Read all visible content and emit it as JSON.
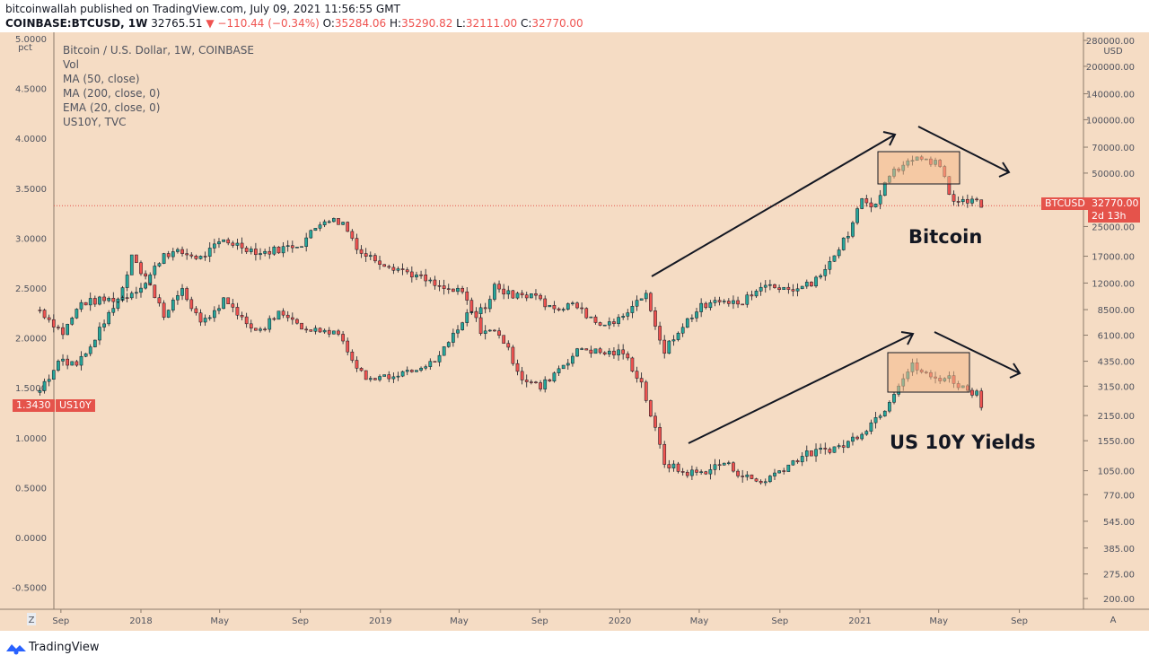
{
  "header": {
    "line1": "bitcoinwallah published on TradingView.com, July 09, 2021 11:56:55 GMT",
    "symbol": "COINBASE:BTCUSD, 1W",
    "price": "32765.51",
    "change": "−110.44 (−0.34%)",
    "o_label": "O:",
    "o_val": "35284.06",
    "h_label": "H:",
    "h_val": "35290.82",
    "l_label": "L:",
    "l_val": "32111.00",
    "c_label": "C:",
    "c_val": "32770.00"
  },
  "legend": {
    "title": "Bitcoin / U.S. Dollar, 1W, COINBASE",
    "vol": "Vol",
    "ma50": "MA (50, close)",
    "ma200": "MA (200, close, 0)",
    "ema20": "EMA (20, close, 0)",
    "us10y": "US10Y, TVC"
  },
  "annotations": {
    "bitcoin": "Bitcoin",
    "yields": "US 10Y Yields"
  },
  "tags": {
    "btc_name": "BTCUSD",
    "btc_price": "32770.00",
    "btc_time": "2d 13h",
    "us_value": "1.3430",
    "us_name": "US10Y"
  },
  "footer": {
    "brand": "TradingView"
  },
  "colors": {
    "background": "#f5dcc4",
    "up": "#26a69a",
    "down": "#ef5350",
    "tag": "#e5534b"
  },
  "chart_data": {
    "type": "candlestick",
    "left_axis": {
      "unit": "pct",
      "ticks": [
        "5.0000",
        "4.5000",
        "4.0000",
        "3.5000",
        "3.0000",
        "2.5000",
        "2.0000",
        "1.5000",
        "1.0000",
        "0.5000",
        "0.0000",
        "-0.5000"
      ],
      "range": [
        -0.6,
        5.1
      ]
    },
    "right_axis": {
      "unit": "USD",
      "scale": "log",
      "ticks": [
        "280000.00",
        "200000.00",
        "140000.00",
        "100000.00",
        "70000.00",
        "50000.00",
        "35000.00",
        "25000.00",
        "17000.00",
        "12000.00",
        "8500.00",
        "6100.00",
        "4350.00",
        "3150.00",
        "2150.00",
        "1550.00",
        "1050.00",
        "770.00",
        "545.00",
        "385.00",
        "275.00",
        "200.00"
      ]
    },
    "x_ticks": [
      "Sep",
      "2018",
      "May",
      "Sep",
      "2019",
      "May",
      "Sep",
      "2020",
      "May",
      "Sep",
      "2021",
      "May",
      "Sep"
    ],
    "x_range": [
      "2017-07-24",
      "2021-09-30"
    ],
    "series": [
      {
        "name": "BTCUSD",
        "axis": "right",
        "points": [
          [
            "2017-07-31",
            2900
          ],
          [
            "2017-08-28",
            4400
          ],
          [
            "2017-09-25",
            4200
          ],
          [
            "2017-10-30",
            6500
          ],
          [
            "2017-11-27",
            9500
          ],
          [
            "2017-12-18",
            16500
          ],
          [
            "2018-01-15",
            11500
          ],
          [
            "2018-02-05",
            8000
          ],
          [
            "2018-03-05",
            11000
          ],
          [
            "2018-04-02",
            7000
          ],
          [
            "2018-05-07",
            9500
          ],
          [
            "2018-06-04",
            7500
          ],
          [
            "2018-07-02",
            6500
          ],
          [
            "2018-07-30",
            8000
          ],
          [
            "2018-08-27",
            7000
          ],
          [
            "2018-09-24",
            6500
          ],
          [
            "2018-10-29",
            6400
          ],
          [
            "2018-11-19",
            4500
          ],
          [
            "2018-12-10",
            3500
          ],
          [
            "2019-01-14",
            3600
          ],
          [
            "2019-02-11",
            3700
          ],
          [
            "2019-03-11",
            3900
          ],
          [
            "2019-04-08",
            5000
          ],
          [
            "2019-05-06",
            7500
          ],
          [
            "2019-06-10",
            9000
          ],
          [
            "2019-06-24",
            11500
          ],
          [
            "2019-07-22",
            10000
          ],
          [
            "2019-08-19",
            10500
          ],
          [
            "2019-09-23",
            8200
          ],
          [
            "2019-10-21",
            9000
          ],
          [
            "2019-11-25",
            7200
          ],
          [
            "2019-12-16",
            7100
          ],
          [
            "2020-01-13",
            8500
          ],
          [
            "2020-02-10",
            10000
          ],
          [
            "2020-03-09",
            5000
          ],
          [
            "2020-04-06",
            7000
          ],
          [
            "2020-05-04",
            9000
          ],
          [
            "2020-06-08",
            9500
          ],
          [
            "2020-07-06",
            9300
          ],
          [
            "2020-07-27",
            11000
          ],
          [
            "2020-08-24",
            11700
          ],
          [
            "2020-09-21",
            10500
          ],
          [
            "2020-10-19",
            12000
          ],
          [
            "2020-11-16",
            16000
          ],
          [
            "2020-12-14",
            23000
          ],
          [
            "2021-01-04",
            35000
          ],
          [
            "2021-01-25",
            33000
          ],
          [
            "2021-02-15",
            50000
          ],
          [
            "2021-03-15",
            58000
          ],
          [
            "2021-04-12",
            60000
          ],
          [
            "2021-05-03",
            56000
          ],
          [
            "2021-05-17",
            37000
          ],
          [
            "2021-06-07",
            35000
          ],
          [
            "2021-06-28",
            34000
          ],
          [
            "2021-07-05",
            32770
          ]
        ]
      },
      {
        "name": "US10Y",
        "axis": "left",
        "points": [
          [
            "2017-07-31",
            2.28
          ],
          [
            "2017-09-04",
            2.05
          ],
          [
            "2017-10-02",
            2.35
          ],
          [
            "2017-11-06",
            2.38
          ],
          [
            "2017-12-04",
            2.4
          ],
          [
            "2018-01-08",
            2.55
          ],
          [
            "2018-02-05",
            2.85
          ],
          [
            "2018-03-05",
            2.85
          ],
          [
            "2018-04-02",
            2.8
          ],
          [
            "2018-05-07",
            2.98
          ],
          [
            "2018-06-04",
            2.92
          ],
          [
            "2018-07-02",
            2.85
          ],
          [
            "2018-08-06",
            2.9
          ],
          [
            "2018-09-03",
            2.95
          ],
          [
            "2018-10-08",
            3.2
          ],
          [
            "2018-11-05",
            3.15
          ],
          [
            "2018-12-03",
            2.85
          ],
          [
            "2019-01-07",
            2.75
          ],
          [
            "2019-02-04",
            2.68
          ],
          [
            "2019-03-04",
            2.6
          ],
          [
            "2019-04-01",
            2.5
          ],
          [
            "2019-05-06",
            2.45
          ],
          [
            "2019-06-03",
            2.08
          ],
          [
            "2019-07-01",
            2.05
          ],
          [
            "2019-08-05",
            1.6
          ],
          [
            "2019-09-02",
            1.5
          ],
          [
            "2019-09-30",
            1.7
          ],
          [
            "2019-11-04",
            1.9
          ],
          [
            "2019-12-02",
            1.85
          ],
          [
            "2020-01-06",
            1.85
          ],
          [
            "2020-02-03",
            1.55
          ],
          [
            "2020-03-09",
            0.75
          ],
          [
            "2020-04-06",
            0.65
          ],
          [
            "2020-05-04",
            0.65
          ],
          [
            "2020-06-08",
            0.75
          ],
          [
            "2020-07-06",
            0.62
          ],
          [
            "2020-08-03",
            0.55
          ],
          [
            "2020-09-07",
            0.7
          ],
          [
            "2020-10-05",
            0.82
          ],
          [
            "2020-11-09",
            0.88
          ],
          [
            "2020-12-07",
            0.92
          ],
          [
            "2021-01-11",
            1.1
          ],
          [
            "2021-02-08",
            1.3
          ],
          [
            "2021-03-01",
            1.55
          ],
          [
            "2021-03-22",
            1.72
          ],
          [
            "2021-04-19",
            1.6
          ],
          [
            "2021-05-17",
            1.6
          ],
          [
            "2021-06-07",
            1.5
          ],
          [
            "2021-06-28",
            1.45
          ],
          [
            "2021-07-05",
            1.34
          ]
        ]
      }
    ],
    "current_line": 32770,
    "grid": false,
    "legend_position": "top-left"
  }
}
